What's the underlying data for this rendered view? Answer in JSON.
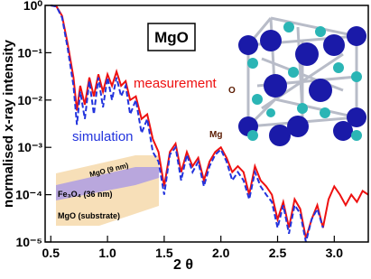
{
  "chart_data": {
    "type": "line",
    "title": "MgO",
    "xlabel": "2 θ",
    "ylabel": "normalised x-ray intensity",
    "log_y": true,
    "xlim": [
      0.45,
      3.3
    ],
    "ylim": [
      1e-05,
      1
    ],
    "xticks": [
      0.5,
      {
        "value": 1,
        "label": "1.0"
      },
      1.5,
      {
        "value": 2,
        "label": "2.0"
      },
      2.5,
      {
        "value": 3,
        "label": "3.0"
      }
    ],
    "yticks": [
      {
        "value": 1e-05,
        "label": "10⁻⁵"
      },
      {
        "value": 0.0001,
        "label": "10⁻⁴"
      },
      {
        "value": 0.001,
        "label": "10⁻³"
      },
      {
        "value": 0.01,
        "label": "10⁻²"
      },
      {
        "value": 0.1,
        "label": "10⁻¹"
      },
      {
        "value": 1,
        "label": "10⁰"
      }
    ],
    "x": [
      0.5,
      0.55,
      0.6,
      0.65,
      0.7,
      0.73,
      0.76,
      0.8,
      0.84,
      0.88,
      0.92,
      0.96,
      1.0,
      1.04,
      1.08,
      1.12,
      1.16,
      1.2,
      1.25,
      1.3,
      1.35,
      1.4,
      1.45,
      1.5,
      1.55,
      1.6,
      1.65,
      1.7,
      1.75,
      1.8,
      1.85,
      1.9,
      1.95,
      2.0,
      2.05,
      2.1,
      2.15,
      2.2,
      2.25,
      2.3,
      2.35,
      2.4,
      2.45,
      2.5,
      2.55,
      2.6,
      2.65,
      2.7,
      2.75,
      2.8,
      2.85,
      2.9,
      2.95,
      3.0,
      3.05,
      3.1,
      3.15,
      3.2,
      3.25,
      3.3
    ],
    "series": [
      {
        "name": "measurement",
        "color": "#ee1111",
        "dash": false,
        "values": [
          1.0,
          0.95,
          0.6,
          0.15,
          0.03,
          0.006,
          0.02,
          0.008,
          0.03,
          0.012,
          0.035,
          0.015,
          0.035,
          0.02,
          0.04,
          0.02,
          0.025,
          0.01,
          0.012,
          0.004,
          0.005,
          0.0015,
          0.0008,
          0.00015,
          0.0008,
          0.0012,
          0.0003,
          0.0008,
          0.0004,
          0.0006,
          0.0002,
          0.0005,
          0.0008,
          0.001,
          0.0006,
          0.0003,
          0.0004,
          0.0003,
          0.0001,
          0.0004,
          0.0002,
          0.00015,
          0.0001,
          3e-05,
          7e-05,
          2e-05,
          8e-05,
          5e-05,
          1.2e-05,
          3e-05,
          6e-05,
          2e-05,
          8e-05,
          0.00015,
          0.0001,
          6e-05,
          0.0001,
          7e-05,
          0.00012,
          0.0001
        ]
      },
      {
        "name": "simulation",
        "color": "#2233dd",
        "dash": true,
        "values": [
          1.0,
          0.95,
          0.55,
          0.12,
          0.02,
          0.003,
          0.015,
          0.004,
          0.025,
          0.005,
          0.03,
          0.007,
          0.03,
          0.01,
          0.03,
          0.012,
          0.02,
          0.005,
          0.01,
          0.002,
          0.004,
          0.0008,
          0.0005,
          0.0001,
          0.0007,
          0.001,
          0.0002,
          0.0007,
          0.0003,
          0.0005,
          0.00015,
          0.0004,
          0.0007,
          0.0009,
          0.0005,
          0.0002,
          0.0003,
          0.0002,
          8e-05,
          0.0003,
          0.00015,
          0.0001,
          7e-05,
          2e-05,
          6e-05,
          1.5e-05,
          6e-05,
          4e-05,
          1e-05,
          3e-05,
          5e-05,
          2e-05,
          null,
          null,
          null,
          null,
          null,
          null,
          null,
          null
        ]
      }
    ],
    "annotations": {
      "atom_o": "O",
      "atom_mg": "Mg",
      "layer_top": "MgO (9 nm)",
      "layer_mid": "Fe₃O₄ (36 nm)",
      "layer_sub": "MgO (substrate)"
    }
  }
}
